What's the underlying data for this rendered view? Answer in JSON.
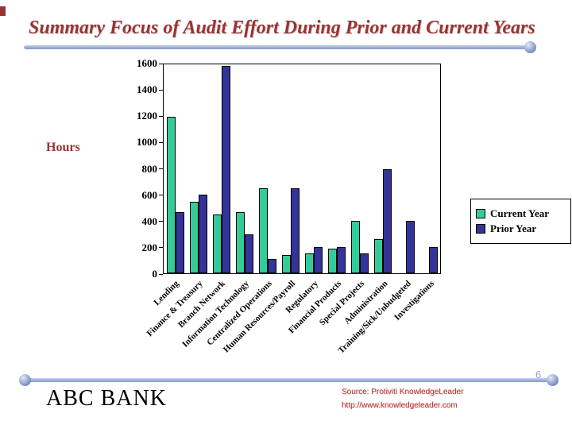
{
  "slide": {
    "title": "Summary Focus of Audit Effort During Prior and Current Years",
    "page_number": "6",
    "footer": {
      "bank_name": "ABC BANK",
      "source_line1": "Source: Protiviti KnowledgeLeader",
      "source_line2": "http://www.knowledgeleader.com"
    }
  },
  "chart_data": {
    "type": "bar",
    "title": "",
    "ylabel": "Hours",
    "xlabel": "",
    "ylim": [
      0,
      1600
    ],
    "y_ticks": [
      0,
      200,
      400,
      600,
      800,
      1000,
      1200,
      1400,
      1600
    ],
    "grid": false,
    "legend_position": "right",
    "categories": [
      "Lending",
      "Finance & Treasury",
      "Branch Network",
      "Information Technology",
      "Centralized Operations",
      "Human Resources/Payroll",
      "Regulatory",
      "Financial Products",
      "Special Projects",
      "Administration",
      "Training/Sick/Unbudgeted",
      "Investigations"
    ],
    "series": [
      {
        "name": "Current Year",
        "color": "#33CC99",
        "values": [
          1200,
          550,
          450,
          470,
          650,
          140,
          150,
          190,
          400,
          260,
          0,
          0
        ]
      },
      {
        "name": "Prior Year",
        "color": "#333399",
        "values": [
          470,
          600,
          1590,
          300,
          110,
          650,
          200,
          200,
          150,
          800,
          400,
          200
        ]
      }
    ]
  }
}
